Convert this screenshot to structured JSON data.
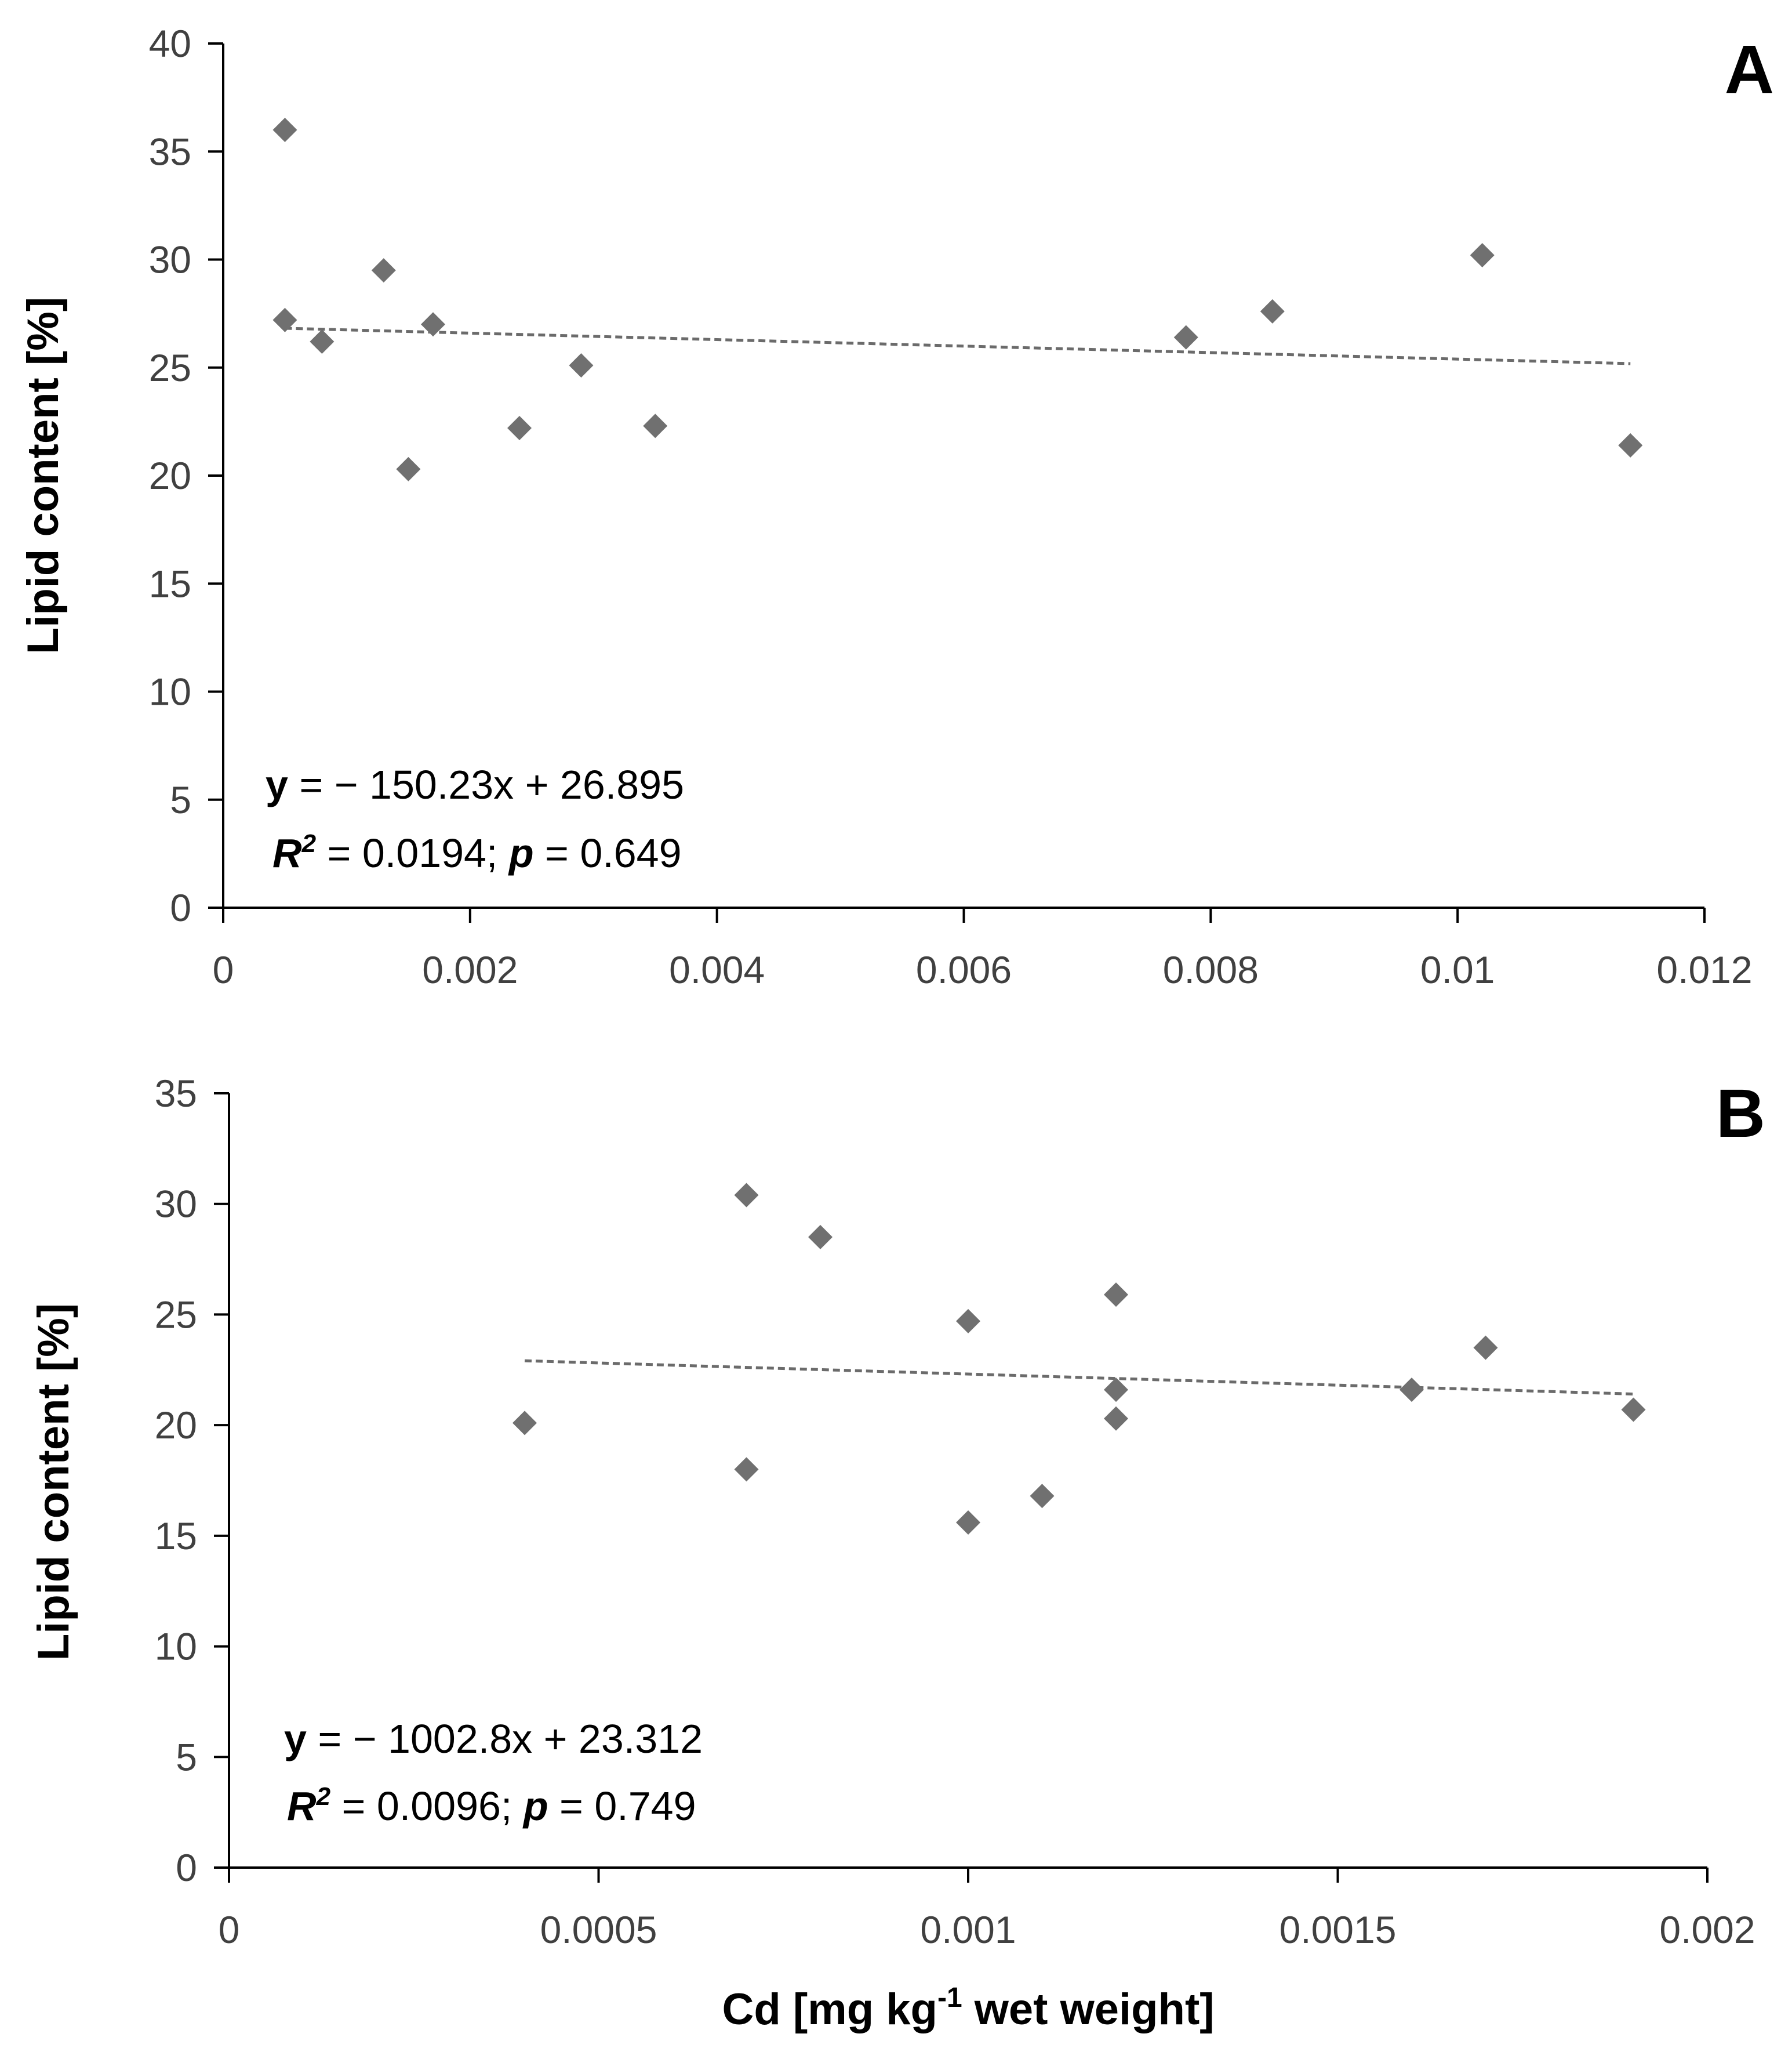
{
  "chart_data": [
    {
      "type": "scatter",
      "panel_label": "A",
      "xlim": [
        0,
        0.012
      ],
      "ylim": [
        0,
        40
      ],
      "x_ticks": [
        "0",
        "0.002",
        "0.004",
        "0.006",
        "0.008",
        "0.01",
        "0.012"
      ],
      "y_ticks": [
        "0",
        "5",
        "10",
        "15",
        "20",
        "25",
        "30",
        "35",
        "40"
      ],
      "xlabel": "",
      "ylabel": "Lipid content [%]",
      "marker_color": "#707070",
      "trendline_color": "#6b6b6b",
      "points": [
        {
          "x": 0.0005,
          "y": 36.0
        },
        {
          "x": 0.0005,
          "y": 27.2
        },
        {
          "x": 0.0008,
          "y": 26.2
        },
        {
          "x": 0.0013,
          "y": 29.5
        },
        {
          "x": 0.0015,
          "y": 20.3
        },
        {
          "x": 0.0017,
          "y": 27.0
        },
        {
          "x": 0.0024,
          "y": 22.2
        },
        {
          "x": 0.0029,
          "y": 25.1
        },
        {
          "x": 0.0035,
          "y": 22.3
        },
        {
          "x": 0.0078,
          "y": 26.4
        },
        {
          "x": 0.0085,
          "y": 27.6
        },
        {
          "x": 0.0102,
          "y": 30.2
        },
        {
          "x": 0.0114,
          "y": 21.4
        }
      ],
      "trendline": {
        "slope": -150.23,
        "intercept": 26.895,
        "x_range": [
          0.0005,
          0.0114
        ]
      },
      "equation": {
        "y_symbol": "y",
        "y_rest": " = − 150.23x + 26.895",
        "r_symbol": "R",
        "r_exp": "2",
        "r_rest": " = 0.0194; ",
        "p_symbol": "p",
        "p_rest": " = 0.649"
      }
    },
    {
      "type": "scatter",
      "panel_label": "B",
      "xlim": [
        0,
        0.002
      ],
      "ylim": [
        0,
        35
      ],
      "x_ticks": [
        "0",
        "0.0005",
        "0.001",
        "0.0015",
        "0.002"
      ],
      "y_ticks": [
        "0",
        "5",
        "10",
        "15",
        "20",
        "25",
        "30",
        "35"
      ],
      "xlabel": "",
      "ylabel": "Lipid content [%]",
      "marker_color": "#707070",
      "trendline_color": "#6b6b6b",
      "points": [
        {
          "x": 0.0004,
          "y": 20.1
        },
        {
          "x": 0.0007,
          "y": 30.4
        },
        {
          "x": 0.0007,
          "y": 18.0
        },
        {
          "x": 0.0008,
          "y": 28.5
        },
        {
          "x": 0.001,
          "y": 24.7
        },
        {
          "x": 0.001,
          "y": 15.6
        },
        {
          "x": 0.0011,
          "y": 16.8
        },
        {
          "x": 0.0012,
          "y": 25.9
        },
        {
          "x": 0.0012,
          "y": 21.6
        },
        {
          "x": 0.0012,
          "y": 20.3
        },
        {
          "x": 0.0016,
          "y": 21.6
        },
        {
          "x": 0.0017,
          "y": 23.5
        },
        {
          "x": 0.0019,
          "y": 20.7
        }
      ],
      "trendline": {
        "slope": -1002.8,
        "intercept": 23.312,
        "x_range": [
          0.0004,
          0.0019
        ]
      },
      "equation": {
        "y_symbol": "y",
        "y_rest": " = − 1002.8x + 23.312",
        "r_symbol": "R",
        "r_exp": "2",
        "r_rest": " = 0.0096; ",
        "p_symbol": "p",
        "p_rest": " = 0.749"
      }
    }
  ],
  "shared_xlabel": {
    "prefix": "Cd [mg kg",
    "superscript": "-1",
    "suffix": " wet weight]"
  }
}
